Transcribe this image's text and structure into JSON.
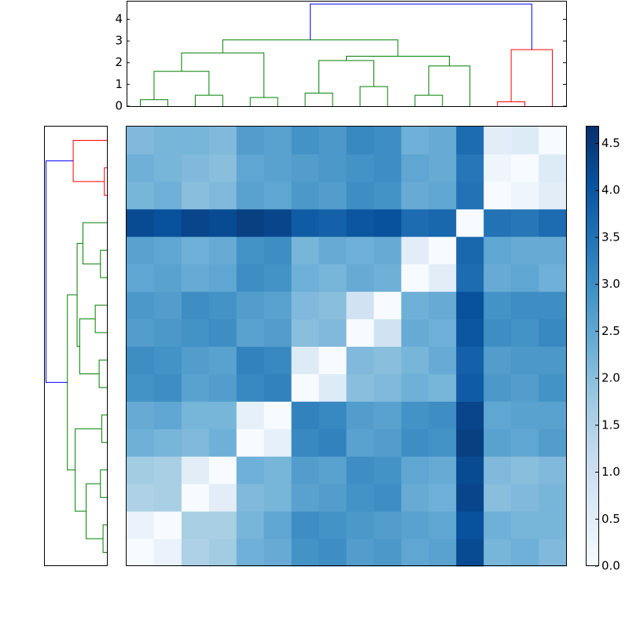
{
  "chart_data": {
    "type": "clustermap",
    "linkage": [
      [
        0,
        1,
        0.3
      ],
      [
        2,
        3,
        0.5
      ],
      [
        16,
        17,
        1.6
      ],
      [
        4,
        5,
        0.4
      ],
      [
        18,
        19,
        2.45
      ],
      [
        6,
        7,
        0.6
      ],
      [
        8,
        9,
        0.9
      ],
      [
        21,
        22,
        2.1
      ],
      [
        10,
        11,
        0.5
      ],
      [
        24,
        12,
        1.85
      ],
      [
        23,
        25,
        2.3
      ],
      [
        20,
        26,
        3.05
      ],
      [
        13,
        14,
        0.2
      ],
      [
        28,
        15,
        2.6
      ],
      [
        27,
        29,
        4.7
      ]
    ],
    "link_colors": [
      "#008000",
      "#008000",
      "#008000",
      "#008000",
      "#008000",
      "#008000",
      "#008000",
      "#008000",
      "#008000",
      "#008000",
      "#008000",
      "#008000",
      "#ff0000",
      "#ff0000",
      "#0000ff"
    ],
    "ylim": [
      0,
      4.85
    ],
    "yticks": [
      0,
      1,
      2,
      3,
      4
    ],
    "matrix": [
      [
        0,
        0.3,
        1.5,
        1.7,
        2.3,
        2.4,
        2.9,
        3.0,
        2.7,
        2.8,
        2.5,
        2.6,
        4.2,
        2.2,
        2.3,
        2.1
      ],
      [
        0.3,
        0,
        1.6,
        1.6,
        2.2,
        2.5,
        3.0,
        2.9,
        2.8,
        2.7,
        2.6,
        2.5,
        4.1,
        2.3,
        2.2,
        2.2
      ],
      [
        1.5,
        1.6,
        0,
        0.5,
        2.1,
        2.2,
        2.6,
        2.7,
        2.9,
        3.0,
        2.4,
        2.3,
        4.3,
        2.0,
        2.1,
        2.2
      ],
      [
        1.7,
        1.6,
        0.5,
        0,
        2.3,
        2.2,
        2.7,
        2.6,
        3.0,
        2.9,
        2.5,
        2.4,
        4.2,
        2.1,
        2.0,
        2.1
      ],
      [
        2.3,
        2.2,
        2.1,
        2.3,
        0,
        0.4,
        3.1,
        3.2,
        2.6,
        2.7,
        3.0,
        2.9,
        4.4,
        2.6,
        2.5,
        2.7
      ],
      [
        2.4,
        2.5,
        2.2,
        2.2,
        0.4,
        0,
        3.2,
        3.1,
        2.7,
        2.6,
        2.9,
        3.0,
        4.3,
        2.5,
        2.6,
        2.6
      ],
      [
        2.9,
        3.0,
        2.6,
        2.7,
        3.1,
        3.2,
        0,
        0.6,
        2.0,
        2.1,
        2.3,
        2.2,
        3.9,
        2.8,
        2.7,
        2.9
      ],
      [
        3.0,
        2.9,
        2.7,
        2.6,
        3.2,
        3.1,
        0.6,
        0,
        2.1,
        2.0,
        2.2,
        2.4,
        3.8,
        2.7,
        2.8,
        2.8
      ],
      [
        2.7,
        2.8,
        2.9,
        3.0,
        2.6,
        2.7,
        2.0,
        2.1,
        0,
        0.9,
        2.4,
        2.3,
        4.0,
        3.0,
        2.9,
        3.1
      ],
      [
        2.8,
        2.7,
        3.0,
        2.9,
        2.7,
        2.6,
        2.1,
        2.0,
        0.9,
        0,
        2.3,
        2.4,
        4.1,
        2.9,
        3.0,
        3.0
      ],
      [
        2.5,
        2.6,
        2.4,
        2.5,
        3.0,
        2.9,
        2.3,
        2.2,
        2.4,
        2.3,
        0,
        0.5,
        3.6,
        2.4,
        2.5,
        2.3
      ],
      [
        2.6,
        2.5,
        2.3,
        2.4,
        2.9,
        3.0,
        2.2,
        2.4,
        2.3,
        2.4,
        0.5,
        0,
        3.7,
        2.5,
        2.4,
        2.4
      ],
      [
        4.2,
        4.1,
        4.3,
        4.2,
        4.4,
        4.3,
        3.9,
        3.8,
        4.0,
        4.1,
        3.6,
        3.7,
        0,
        3.5,
        3.4,
        3.6
      ],
      [
        2.2,
        2.3,
        2.0,
        2.1,
        2.6,
        2.5,
        2.8,
        2.7,
        3.0,
        2.9,
        2.4,
        2.5,
        3.5,
        0,
        0.2,
        0.5
      ],
      [
        2.3,
        2.2,
        2.1,
        2.0,
        2.5,
        2.6,
        2.7,
        2.8,
        2.9,
        3.0,
        2.5,
        2.4,
        3.4,
        0.2,
        0,
        0.6
      ],
      [
        2.1,
        2.2,
        2.2,
        2.1,
        2.7,
        2.6,
        2.9,
        2.8,
        3.1,
        3.0,
        2.3,
        2.4,
        3.6,
        0.5,
        0.6,
        0
      ]
    ],
    "colormap": [
      "#f7fbff",
      "#deebf7",
      "#c6dbef",
      "#9ecae1",
      "#6baed6",
      "#4292c6",
      "#2171b5",
      "#08519c",
      "#08306b"
    ],
    "clim": [
      0,
      4.68
    ],
    "colorbar_ticks": [
      {
        "value": 0,
        "label": "0.0"
      },
      {
        "value": 0.5,
        "label": "0.5"
      },
      {
        "value": 1,
        "label": "1.0"
      },
      {
        "value": 1.5,
        "label": "1.5"
      },
      {
        "value": 2,
        "label": "2.0"
      },
      {
        "value": 2.5,
        "label": "2.5"
      },
      {
        "value": 3,
        "label": "3.0"
      },
      {
        "value": 3.5,
        "label": "3.5"
      },
      {
        "value": 4,
        "label": "4.0"
      },
      {
        "value": 4.5,
        "label": "4.5"
      }
    ]
  }
}
